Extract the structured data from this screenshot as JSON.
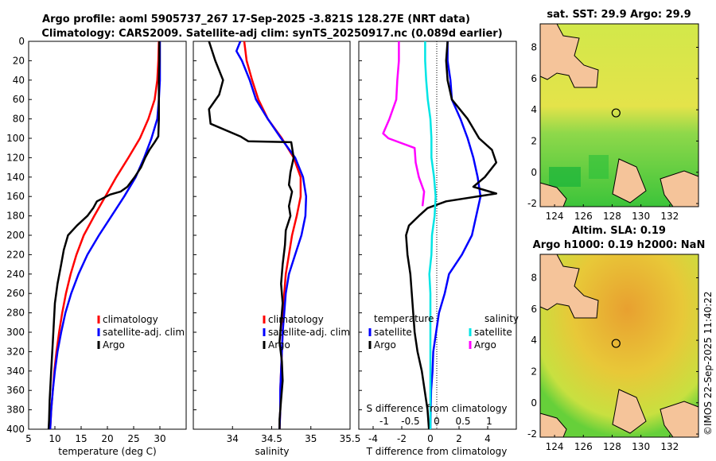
{
  "title_line1": "Argo profile: aoml 5905737_267 17-Sep-2025 -3.821S 128.27E (NRT data)",
  "title_line2": "Climatology: CARS2009. Satellite-adj clim: synTS_20250917.nc (0.089d earlier)",
  "sst_title": "sat. SST: 29.9 Argo: 29.9",
  "sla_title1": "Altim. SLA: 0.19",
  "sla_title2": "Argo h1000: 0.19 h2000: NaN",
  "credit": "©IMOS 22-Sep-2025 11:40:22",
  "colors": {
    "climatology": "#ff0000",
    "satellite": "#0000ff",
    "argo": "#000000",
    "t_diff": "#00e5e5",
    "s_diff": "#ff00ff",
    "land": "#f5c49a"
  },
  "chart_data": [
    {
      "type": "line",
      "name": "temperature",
      "xlabel": "temperature (deg C)",
      "ylabel": "",
      "xlim": [
        5,
        35
      ],
      "ylim": [
        400,
        0
      ],
      "xticks": [
        "5",
        "10",
        "15",
        "20",
        "25",
        "30"
      ],
      "yticks": [
        "0",
        "20",
        "40",
        "60",
        "80",
        "100",
        "120",
        "140",
        "160",
        "180",
        "200",
        "220",
        "240",
        "260",
        "280",
        "300",
        "320",
        "340",
        "360",
        "380",
        "400"
      ],
      "legend": [
        "climatology",
        "satellite-adj. clim",
        "Argo"
      ],
      "series": [
        {
          "name": "climatology",
          "color": "#ff0000",
          "points": [
            [
              29.8,
              0
            ],
            [
              29.7,
              20
            ],
            [
              29.5,
              40
            ],
            [
              29,
              60
            ],
            [
              27.8,
              80
            ],
            [
              26.2,
              100
            ],
            [
              24,
              120
            ],
            [
              21.7,
              140
            ],
            [
              19.6,
              160
            ],
            [
              17.5,
              180
            ],
            [
              15.5,
              200
            ],
            [
              14.1,
              220
            ],
            [
              13,
              240
            ],
            [
              12.1,
              260
            ],
            [
              11.4,
              280
            ],
            [
              10.8,
              300
            ],
            [
              10.3,
              320
            ],
            [
              9.9,
              340
            ],
            [
              9.6,
              360
            ],
            [
              9.3,
              380
            ],
            [
              9.1,
              400
            ]
          ]
        },
        {
          "name": "satellite-adj. clim",
          "color": "#0000ff",
          "points": [
            [
              30,
              0
            ],
            [
              30,
              20
            ],
            [
              30,
              40
            ],
            [
              29.8,
              60
            ],
            [
              29.5,
              80
            ],
            [
              28.4,
              100
            ],
            [
              27,
              120
            ],
            [
              25.4,
              140
            ],
            [
              23.2,
              160
            ],
            [
              20.8,
              180
            ],
            [
              18.4,
              200
            ],
            [
              16.2,
              220
            ],
            [
              14.5,
              240
            ],
            [
              13.1,
              260
            ],
            [
              12,
              280
            ],
            [
              11.2,
              300
            ],
            [
              10.5,
              320
            ],
            [
              10,
              340
            ],
            [
              9.6,
              360
            ],
            [
              9.3,
              380
            ],
            [
              9.1,
              400
            ]
          ]
        },
        {
          "name": "Argo",
          "color": "#000000",
          "points": [
            [
              29.9,
              0
            ],
            [
              29.9,
              20
            ],
            [
              29.8,
              40
            ],
            [
              29.8,
              60
            ],
            [
              29.8,
              80
            ],
            [
              29.7,
              98
            ],
            [
              29,
              104
            ],
            [
              28,
              112
            ],
            [
              27.2,
              120
            ],
            [
              26.4,
              130
            ],
            [
              25.2,
              140
            ],
            [
              23.8,
              150
            ],
            [
              22.5,
              155
            ],
            [
              20.5,
              158
            ],
            [
              18,
              165
            ],
            [
              17.3,
              172
            ],
            [
              16.2,
              180
            ],
            [
              14.2,
              190
            ],
            [
              12.5,
              200
            ],
            [
              11.7,
              215
            ],
            [
              11.2,
              230
            ],
            [
              10.5,
              250
            ],
            [
              10,
              270
            ],
            [
              9.8,
              290
            ],
            [
              9.6,
              310
            ],
            [
              9.4,
              330
            ],
            [
              9.2,
              350
            ],
            [
              9,
              370
            ],
            [
              8.9,
              390
            ],
            [
              8.8,
              400
            ]
          ]
        }
      ]
    },
    {
      "type": "line",
      "name": "salinity",
      "xlabel": "salinity",
      "ylabel": "",
      "xlim": [
        33.5,
        35.5
      ],
      "ylim": [
        400,
        0
      ],
      "xticks": [
        "34",
        "34.5",
        "35"
      ],
      "legend": [
        "climatology",
        "satellite-adj. clim",
        "Argo"
      ],
      "series": [
        {
          "name": "climatology",
          "color": "#ff0000",
          "points": [
            [
              34.15,
              0
            ],
            [
              34.18,
              20
            ],
            [
              34.25,
              40
            ],
            [
              34.33,
              60
            ],
            [
              34.45,
              80
            ],
            [
              34.63,
              100
            ],
            [
              34.78,
              120
            ],
            [
              34.87,
              140
            ],
            [
              34.87,
              160
            ],
            [
              34.82,
              180
            ],
            [
              34.76,
              200
            ],
            [
              34.72,
              220
            ],
            [
              34.68,
              240
            ],
            [
              34.66,
              260
            ],
            [
              34.65,
              280
            ],
            [
              34.64,
              300
            ],
            [
              34.63,
              320
            ],
            [
              34.62,
              340
            ],
            [
              34.61,
              360
            ],
            [
              34.61,
              380
            ],
            [
              34.6,
              400
            ]
          ]
        },
        {
          "name": "satellite-adj. clim",
          "color": "#0000ff",
          "points": [
            [
              34.1,
              0
            ],
            [
              34.05,
              10
            ],
            [
              34.12,
              20
            ],
            [
              34.22,
              40
            ],
            [
              34.3,
              60
            ],
            [
              34.45,
              80
            ],
            [
              34.62,
              100
            ],
            [
              34.8,
              120
            ],
            [
              34.9,
              140
            ],
            [
              34.94,
              160
            ],
            [
              34.93,
              180
            ],
            [
              34.88,
              200
            ],
            [
              34.8,
              220
            ],
            [
              34.72,
              240
            ],
            [
              34.68,
              260
            ],
            [
              34.66,
              280
            ],
            [
              34.64,
              300
            ],
            [
              34.63,
              320
            ],
            [
              34.62,
              340
            ],
            [
              34.61,
              360
            ],
            [
              34.61,
              380
            ],
            [
              34.6,
              400
            ]
          ]
        },
        {
          "name": "Argo",
          "color": "#000000",
          "points": [
            [
              33.7,
              0
            ],
            [
              33.78,
              20
            ],
            [
              33.88,
              40
            ],
            [
              33.83,
              55
            ],
            [
              33.7,
              70
            ],
            [
              33.72,
              85
            ],
            [
              34.1,
              98
            ],
            [
              34.2,
              103
            ],
            [
              34.75,
              104
            ],
            [
              34.78,
              120
            ],
            [
              34.74,
              135
            ],
            [
              34.72,
              148
            ],
            [
              34.76,
              155
            ],
            [
              34.72,
              170
            ],
            [
              34.74,
              180
            ],
            [
              34.68,
              195
            ],
            [
              34.67,
              210
            ],
            [
              34.64,
              230
            ],
            [
              34.62,
              250
            ],
            [
              34.64,
              270
            ],
            [
              34.62,
              290
            ],
            [
              34.6,
              310
            ],
            [
              34.63,
              330
            ],
            [
              34.64,
              350
            ],
            [
              34.62,
              370
            ],
            [
              34.6,
              390
            ],
            [
              34.6,
              400
            ]
          ]
        }
      ]
    },
    {
      "type": "line",
      "name": "differences",
      "xlabel": "T difference from climatology",
      "xlabel_top": "S difference from climatology",
      "xlim": [
        -5,
        6
      ],
      "ylim": [
        400,
        0
      ],
      "xticks": [
        "-4",
        "-2",
        "0",
        "2",
        "4"
      ],
      "xticks_s": [
        "-1",
        "-0.5",
        "0",
        "0.5",
        "1"
      ],
      "legend_temperature_title": "temperature",
      "legend_salinity_title": "salinity",
      "legend": [
        "satellite",
        "Argo",
        "satellite",
        "Argo"
      ],
      "series": [
        {
          "name": "T satellite",
          "color": "#0000ff",
          "points": [
            [
              1.2,
              0
            ],
            [
              1.2,
              20
            ],
            [
              1.4,
              40
            ],
            [
              1.5,
              60
            ],
            [
              2.1,
              80
            ],
            [
              2.6,
              100
            ],
            [
              3,
              120
            ],
            [
              3.3,
              140
            ],
            [
              3.5,
              160
            ],
            [
              3.2,
              180
            ],
            [
              2.9,
              200
            ],
            [
              2.2,
              220
            ],
            [
              1.3,
              240
            ],
            [
              1,
              260
            ],
            [
              0.6,
              280
            ],
            [
              0.4,
              300
            ],
            [
              0.2,
              320
            ],
            [
              0.15,
              340
            ],
            [
              0.05,
              360
            ],
            [
              0.02,
              380
            ],
            [
              0,
              400
            ]
          ]
        },
        {
          "name": "T Argo",
          "color": "#000000",
          "points": [
            [
              1.2,
              0
            ],
            [
              1.1,
              20
            ],
            [
              1.2,
              40
            ],
            [
              1.5,
              60
            ],
            [
              2.6,
              80
            ],
            [
              3.4,
              100
            ],
            [
              4.3,
              112
            ],
            [
              4.6,
              125
            ],
            [
              3.8,
              140
            ],
            [
              3,
              150
            ],
            [
              4.6,
              157
            ],
            [
              1.1,
              165
            ],
            [
              -0.2,
              172
            ],
            [
              -0.8,
              180
            ],
            [
              -1.5,
              190
            ],
            [
              -1.7,
              200
            ],
            [
              -1.6,
              220
            ],
            [
              -1.4,
              240
            ],
            [
              -1.3,
              260
            ],
            [
              -1.2,
              280
            ],
            [
              -1.1,
              300
            ],
            [
              -0.9,
              320
            ],
            [
              -0.6,
              340
            ],
            [
              -0.4,
              360
            ],
            [
              -0.2,
              380
            ],
            [
              -0.1,
              400
            ]
          ]
        },
        {
          "name": "S satellite",
          "color": "#00e5e5",
          "points": [
            [
              -0.1,
              0
            ],
            [
              -0.1,
              20
            ],
            [
              -0.08,
              40
            ],
            [
              -0.05,
              60
            ],
            [
              0,
              80
            ],
            [
              0.02,
              100
            ],
            [
              0.02,
              120
            ],
            [
              0.07,
              140
            ],
            [
              0.1,
              160
            ],
            [
              0.08,
              180
            ],
            [
              0.03,
              200
            ],
            [
              0.02,
              220
            ],
            [
              -0.02,
              240
            ],
            [
              0,
              260
            ],
            [
              0,
              280
            ],
            [
              0,
              300
            ],
            [
              0,
              320
            ],
            [
              0,
              340
            ],
            [
              0,
              360
            ],
            [
              0,
              380
            ],
            [
              0,
              400
            ]
          ]
        },
        {
          "name": "S Argo",
          "color": "#ff00ff",
          "points": [
            [
              -0.6,
              0
            ],
            [
              -0.6,
              20
            ],
            [
              -0.63,
              40
            ],
            [
              -0.65,
              60
            ],
            [
              -0.78,
              80
            ],
            [
              -0.9,
              95
            ],
            [
              -0.8,
              100
            ],
            [
              -0.3,
              110
            ],
            [
              -0.28,
              125
            ],
            [
              -0.22,
              140
            ],
            [
              -0.12,
              155
            ],
            [
              -0.15,
              170
            ]
          ]
        }
      ]
    },
    {
      "type": "heatmap",
      "name": "satellite SST map",
      "xticks": [
        "124",
        "126",
        "128",
        "130",
        "132"
      ],
      "yticks": [
        "8",
        "6",
        "4",
        "2",
        "0",
        "-2"
      ],
      "xlim": [
        123,
        134
      ],
      "ylim": [
        -2.2,
        9.5
      ],
      "float_position": [
        128.27,
        3.8
      ]
    },
    {
      "type": "heatmap",
      "name": "altimetry SLA map",
      "xticks": [
        "124",
        "126",
        "128",
        "130",
        "132"
      ],
      "yticks": [
        "8",
        "6",
        "4",
        "2",
        "0",
        "-2"
      ],
      "xlim": [
        123,
        134
      ],
      "ylim": [
        -2.2,
        9.5
      ],
      "float_position": [
        128.27,
        3.8
      ]
    }
  ]
}
